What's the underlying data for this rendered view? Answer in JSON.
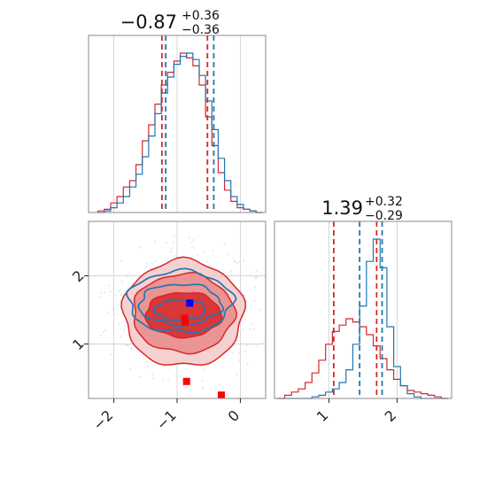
{
  "colors": {
    "red": "#d62728",
    "blue": "#1f77b4",
    "marker_red": "#ff0000",
    "marker_blue": "#0000ff",
    "grid": "#cfcfcf",
    "frame": "#888888"
  },
  "chart_data": [
    {
      "type": "histogram",
      "panel": "top-left marginal (parameter 1)",
      "title": {
        "value": "−0.87",
        "plus": "+0.36",
        "minus": "−0.36"
      },
      "xlim": [
        -2.4,
        0.4
      ],
      "grid": true,
      "x_ticks": [
        -2,
        -1,
        0
      ],
      "quantile_lines": [
        {
          "series": "red",
          "x": -1.24
        },
        {
          "series": "red",
          "x": -0.52
        },
        {
          "series": "blue",
          "x": -1.18
        },
        {
          "series": "blue",
          "x": -0.42
        }
      ],
      "series": [
        {
          "color": "red",
          "bins_x": [
            -2.2,
            -2.1,
            -2.0,
            -1.9,
            -1.8,
            -1.7,
            -1.6,
            -1.5,
            -1.4,
            -1.3,
            -1.2,
            -1.1,
            -1.0,
            -0.9,
            -0.8,
            -0.7,
            -0.6,
            -0.5,
            -0.4,
            -0.3,
            -0.2,
            -0.1,
            0.0,
            0.1,
            0.2,
            0.3
          ],
          "values": [
            0.01,
            0.02,
            0.06,
            0.1,
            0.16,
            0.2,
            0.3,
            0.45,
            0.55,
            0.68,
            0.8,
            0.88,
            0.95,
            1.0,
            0.97,
            0.92,
            0.8,
            0.6,
            0.42,
            0.25,
            0.14,
            0.07,
            0.03,
            0.02,
            0.01,
            0.0
          ]
        },
        {
          "color": "blue",
          "bins_x": [
            -2.2,
            -2.1,
            -2.0,
            -1.9,
            -1.8,
            -1.7,
            -1.6,
            -1.5,
            -1.4,
            -1.3,
            -1.2,
            -1.1,
            -1.0,
            -0.9,
            -0.8,
            -0.7,
            -0.6,
            -0.5,
            -0.4,
            -0.3,
            -0.2,
            -0.1,
            0.0,
            0.1,
            0.2,
            0.3
          ],
          "values": [
            0.0,
            0.01,
            0.03,
            0.06,
            0.1,
            0.16,
            0.24,
            0.35,
            0.48,
            0.62,
            0.75,
            0.85,
            0.93,
            0.98,
            1.0,
            0.96,
            0.86,
            0.7,
            0.52,
            0.34,
            0.2,
            0.1,
            0.05,
            0.02,
            0.01,
            0.0
          ]
        }
      ]
    },
    {
      "type": "contour",
      "panel": "bottom-left 2D (parameter 1 vs parameter 2)",
      "xlim": [
        -2.4,
        0.4
      ],
      "ylim": [
        0.2,
        2.8
      ],
      "grid": true,
      "x_ticks": [
        -2,
        -1,
        0
      ],
      "y_ticks": [
        1,
        2
      ],
      "red_filled_contours": [
        {
          "level": "outer",
          "center": [
            -0.9,
            1.45
          ],
          "radius": [
            0.95,
            0.78
          ]
        },
        {
          "level": "middle",
          "center": [
            -0.9,
            1.45
          ],
          "radius": [
            0.8,
            0.58
          ]
        },
        {
          "level": "inner",
          "center": [
            -0.9,
            1.43
          ],
          "radius": [
            0.6,
            0.33
          ]
        }
      ],
      "blue_contours": [
        {
          "level": "outer",
          "center": [
            -0.95,
            1.62
          ],
          "radius": [
            0.82,
            0.45
          ]
        },
        {
          "level": "middle",
          "center": [
            -0.95,
            1.58
          ],
          "radius": [
            0.65,
            0.3
          ]
        },
        {
          "level": "inner",
          "center": [
            -0.95,
            1.5
          ],
          "radius": [
            0.4,
            0.15
          ]
        }
      ],
      "markers": [
        {
          "color": "blue",
          "x": -0.8,
          "y": 1.6
        },
        {
          "color": "red",
          "x": -0.88,
          "y": 1.38
        },
        {
          "color": "red",
          "x": -0.87,
          "y": 1.32
        },
        {
          "color": "red",
          "x": -0.85,
          "y": 0.45
        },
        {
          "color": "red",
          "x": -0.3,
          "y": 0.25
        }
      ]
    },
    {
      "type": "histogram",
      "panel": "bottom-right marginal (parameter 2)",
      "title": {
        "value": "1.39",
        "plus": "+0.32",
        "minus": "−0.29"
      },
      "xlim": [
        0.2,
        2.8
      ],
      "grid": true,
      "x_ticks": [
        1,
        2
      ],
      "quantile_lines": [
        {
          "series": "red",
          "x": 1.07
        },
        {
          "series": "red",
          "x": 1.7
        },
        {
          "series": "blue",
          "x": 1.45
        },
        {
          "series": "blue",
          "x": 1.78
        }
      ],
      "series": [
        {
          "color": "red",
          "bins_x": [
            0.3,
            0.4,
            0.5,
            0.6,
            0.7,
            0.8,
            0.9,
            1.0,
            1.1,
            1.2,
            1.3,
            1.4,
            1.5,
            1.6,
            1.7,
            1.8,
            1.9,
            2.0,
            2.1,
            2.2,
            2.3,
            2.4,
            2.5,
            2.6,
            2.7
          ],
          "values": [
            0.0,
            0.02,
            0.04,
            0.06,
            0.1,
            0.16,
            0.24,
            0.34,
            0.42,
            0.46,
            0.5,
            0.48,
            0.45,
            0.4,
            0.33,
            0.25,
            0.18,
            0.12,
            0.08,
            0.05,
            0.04,
            0.03,
            0.02,
            0.01,
            0.0
          ]
        },
        {
          "color": "blue",
          "bins_x": [
            0.3,
            0.4,
            0.5,
            0.6,
            0.7,
            0.8,
            0.9,
            1.0,
            1.1,
            1.2,
            1.3,
            1.4,
            1.5,
            1.6,
            1.7,
            1.8,
            1.9,
            2.0,
            2.1,
            2.2,
            2.3,
            2.4,
            2.5,
            2.6,
            2.7
          ],
          "values": [
            0.0,
            0.0,
            0.0,
            0.0,
            0.0,
            0.01,
            0.02,
            0.04,
            0.06,
            0.1,
            0.18,
            0.34,
            0.58,
            0.86,
            1.0,
            0.82,
            0.45,
            0.2,
            0.08,
            0.03,
            0.01,
            0.0,
            0.0,
            0.0,
            0.0
          ]
        }
      ]
    }
  ]
}
